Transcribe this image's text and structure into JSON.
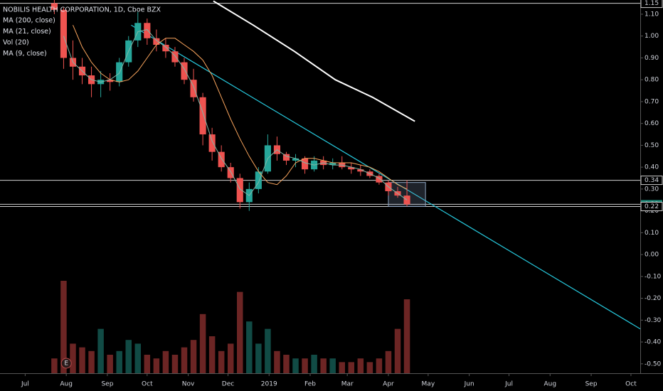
{
  "chart_data": {
    "type": "candlestick",
    "title": "NOBILIS HEALTH CORPORATION, 1D, Cboe BZX",
    "xlim": [
      "2018-06-12",
      "2019-10-08"
    ],
    "xticks": [
      {
        "value": "2018-07-01",
        "label": "Jul"
      },
      {
        "value": "2018-08-01",
        "label": "Aug"
      },
      {
        "value": "2018-09-01",
        "label": "Sep"
      },
      {
        "value": "2018-10-01",
        "label": "Oct"
      },
      {
        "value": "2018-11-01",
        "label": "Nov"
      },
      {
        "value": "2018-12-01",
        "label": "Dec"
      },
      {
        "value": "2019-01-01",
        "label": "2019"
      },
      {
        "value": "2019-02-01",
        "label": "Feb"
      },
      {
        "value": "2019-03-01",
        "label": "Mar"
      },
      {
        "value": "2019-04-01",
        "label": "Apr"
      },
      {
        "value": "2019-05-01",
        "label": "May"
      },
      {
        "value": "2019-06-01",
        "label": "Jun"
      },
      {
        "value": "2019-07-01",
        "label": "Jul"
      },
      {
        "value": "2019-08-01",
        "label": "Aug"
      },
      {
        "value": "2019-09-01",
        "label": "Sep"
      },
      {
        "value": "2019-10-01",
        "label": "Oct"
      }
    ],
    "ylim": [
      -0.543,
      1.165
    ],
    "yticks": [
      {
        "value": 1.1,
        "label": "1.10"
      },
      {
        "value": 1.0,
        "label": "1.00"
      },
      {
        "value": 0.9,
        "label": "0.90"
      },
      {
        "value": 0.8,
        "label": "0.80"
      },
      {
        "value": 0.7,
        "label": "0.70"
      },
      {
        "value": 0.6,
        "label": "0.60"
      },
      {
        "value": 0.5,
        "label": "0.50"
      },
      {
        "value": 0.4,
        "label": "0.40"
      },
      {
        "value": 0.3,
        "label": "0.30"
      },
      {
        "value": 0.2,
        "label": "0.20"
      },
      {
        "value": 0.1,
        "label": "0.10"
      },
      {
        "value": 0,
        "label": "0.00"
      },
      {
        "value": -0.1,
        "label": "-0.10"
      },
      {
        "value": -0.2,
        "label": "-0.20"
      },
      {
        "value": -0.3,
        "label": "-0.30"
      },
      {
        "value": -0.4,
        "label": "-0.40"
      },
      {
        "value": -0.5,
        "label": "-0.50"
      }
    ],
    "x": [
      "2018-07-23",
      "2018-07-30",
      "2018-08-06",
      "2018-08-13",
      "2018-08-20",
      "2018-08-27",
      "2018-09-03",
      "2018-09-10",
      "2018-09-17",
      "2018-09-24",
      "2018-10-01",
      "2018-10-08",
      "2018-10-15",
      "2018-10-22",
      "2018-10-29",
      "2018-11-05",
      "2018-11-12",
      "2018-11-19",
      "2018-11-26",
      "2018-12-03",
      "2018-12-10",
      "2018-12-17",
      "2018-12-24",
      "2018-12-31",
      "2019-01-07",
      "2019-01-14",
      "2019-01-21",
      "2019-01-28",
      "2019-02-04",
      "2019-02-11",
      "2019-02-18",
      "2019-02-25",
      "2019-03-04",
      "2019-03-11",
      "2019-03-18",
      "2019-03-25",
      "2019-04-01",
      "2019-04-08",
      "2019-04-15"
    ],
    "open": [
      1.15,
      1.12,
      0.9,
      0.86,
      0.82,
      0.78,
      0.8,
      0.79,
      0.88,
      0.98,
      1.06,
      0.99,
      0.96,
      0.93,
      0.88,
      0.8,
      0.72,
      0.55,
      0.47,
      0.4,
      0.35,
      0.24,
      0.3,
      0.38,
      0.5,
      0.46,
      0.43,
      0.44,
      0.39,
      0.43,
      0.41,
      0.42,
      0.4,
      0.39,
      0.38,
      0.36,
      0.33,
      0.29,
      0.27
    ],
    "high": [
      1.17,
      1.13,
      0.98,
      0.9,
      0.86,
      0.84,
      0.83,
      0.9,
      1.0,
      1.11,
      1.08,
      1.03,
      0.99,
      0.95,
      0.9,
      0.85,
      0.74,
      0.58,
      0.5,
      0.42,
      0.37,
      0.33,
      0.4,
      0.55,
      0.54,
      0.47,
      0.46,
      0.45,
      0.45,
      0.45,
      0.44,
      0.45,
      0.42,
      0.41,
      0.39,
      0.37,
      0.34,
      0.31,
      0.34
    ],
    "low": [
      1.1,
      0.85,
      0.8,
      0.78,
      0.72,
      0.72,
      0.75,
      0.77,
      0.86,
      0.95,
      0.96,
      0.93,
      0.9,
      0.86,
      0.78,
      0.7,
      0.5,
      0.43,
      0.38,
      0.33,
      0.21,
      0.2,
      0.28,
      0.37,
      0.43,
      0.41,
      0.4,
      0.37,
      0.38,
      0.39,
      0.39,
      0.39,
      0.37,
      0.36,
      0.35,
      0.32,
      0.27,
      0.26,
      0.22
    ],
    "close": [
      1.12,
      0.9,
      0.86,
      0.82,
      0.78,
      0.8,
      0.79,
      0.88,
      0.98,
      1.06,
      0.99,
      0.96,
      0.93,
      0.88,
      0.8,
      0.72,
      0.55,
      0.47,
      0.4,
      0.35,
      0.24,
      0.3,
      0.38,
      0.5,
      0.46,
      0.43,
      0.44,
      0.39,
      0.43,
      0.41,
      0.42,
      0.4,
      0.39,
      0.38,
      0.36,
      0.33,
      0.29,
      0.27,
      0.23
    ],
    "up_color": "#26a69a",
    "down_color": "#ef5350",
    "overlays": [
      {
        "name": "MA (200, close)",
        "color": "#ffffff",
        "width": 2,
        "x": [
          "2018-11-20",
          "2018-12-20",
          "2019-01-20",
          "2019-02-20",
          "2019-03-20",
          "2019-04-21"
        ],
        "values": [
          1.16,
          1.05,
          0.93,
          0.8,
          0.72,
          0.61
        ]
      },
      {
        "name": "MA (21, close)",
        "color": "#f7a35c",
        "width": 1,
        "values": [
          null,
          null,
          1.05,
          0.95,
          0.88,
          0.83,
          0.8,
          0.79,
          0.8,
          0.84,
          0.9,
          0.96,
          0.99,
          0.99,
          0.96,
          0.93,
          0.89,
          0.82,
          0.72,
          0.62,
          0.53,
          0.45,
          0.38,
          0.33,
          0.32,
          0.36,
          0.42,
          0.44,
          0.44,
          0.43,
          0.42,
          0.42,
          0.42,
          0.41,
          0.4,
          0.38,
          0.35,
          0.32,
          0.3
        ]
      },
      {
        "name": "MA (9, close)",
        "color": "#7fb6a6",
        "width": 1,
        "values": [
          null,
          1.0,
          0.88,
          0.84,
          0.8,
          0.79,
          0.8,
          0.83,
          0.93,
          1.02,
          1.03,
          0.98,
          0.95,
          0.91,
          0.85,
          0.77,
          0.65,
          0.52,
          0.44,
          0.38,
          0.3,
          0.27,
          0.33,
          0.44,
          0.48,
          0.45,
          0.44,
          0.42,
          0.41,
          0.42,
          0.41,
          0.41,
          0.4,
          0.39,
          0.37,
          0.35,
          0.31,
          0.28,
          0.25
        ]
      }
    ],
    "volume": {
      "name": "Vol (20)",
      "values": [
        20,
        125,
        40,
        35,
        30,
        60,
        25,
        30,
        45,
        40,
        25,
        20,
        30,
        25,
        35,
        45,
        80,
        50,
        30,
        40,
        110,
        70,
        40,
        60,
        30,
        25,
        20,
        20,
        25,
        20,
        20,
        15,
        15,
        20,
        15,
        20,
        30,
        60,
        100
      ]
    },
    "trendline": {
      "color": "#26c6da",
      "x": [
        "2018-09-19",
        "2019-10-08"
      ],
      "values": [
        1.05,
        -0.34
      ]
    },
    "box": {
      "x": [
        "2019-04-01",
        "2019-04-29"
      ],
      "values": [
        0.33,
        0.22
      ]
    },
    "hlines": [
      1.15,
      0.34,
      0.23,
      0.22
    ],
    "annotation": {
      "text": "E",
      "x": "2018-08-01"
    }
  }
}
